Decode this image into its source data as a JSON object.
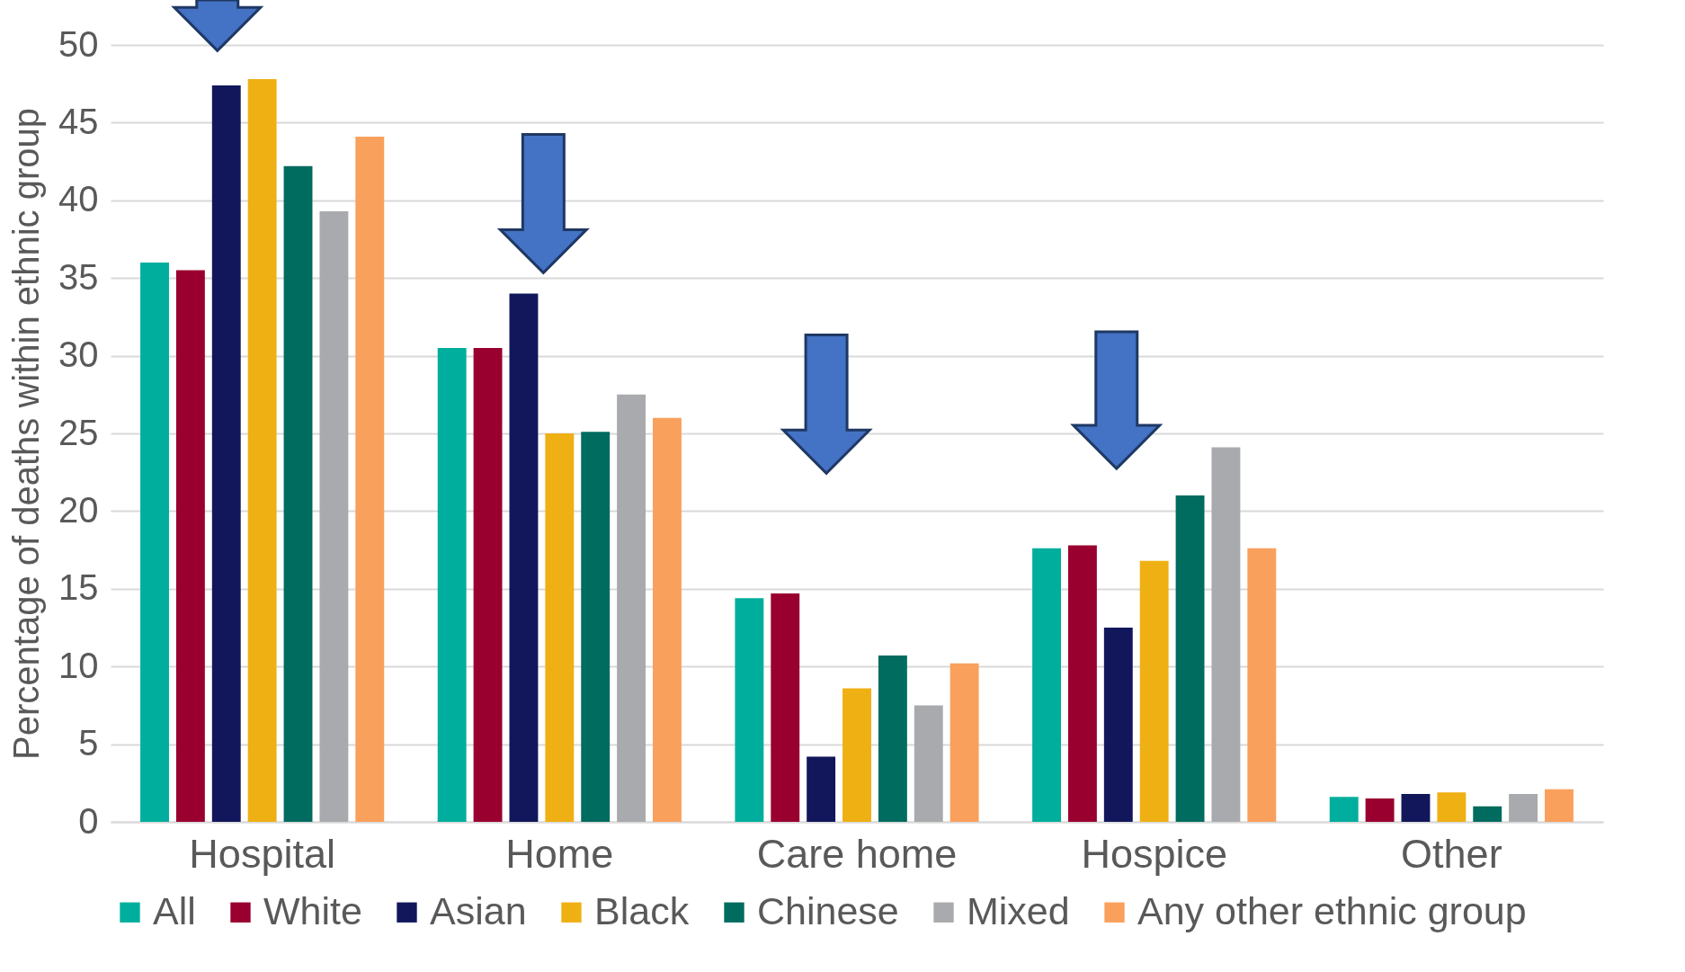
{
  "chart_data": {
    "type": "bar",
    "ylabel": "Percentage of deaths within ethnic group",
    "categories": [
      "Hospital",
      "Home",
      "Care home",
      "Hospice",
      "Other"
    ],
    "series": [
      {
        "name": "All",
        "color": "#00ae9d",
        "values": [
          36.0,
          30.5,
          14.4,
          17.6,
          1.6
        ]
      },
      {
        "name": "White",
        "color": "#990030",
        "values": [
          35.5,
          30.5,
          14.7,
          17.8,
          1.5
        ]
      },
      {
        "name": "Asian",
        "color": "#12175c",
        "values": [
          47.4,
          34.0,
          4.2,
          12.5,
          1.8
        ]
      },
      {
        "name": "Black",
        "color": "#efb014",
        "values": [
          47.8,
          25.0,
          8.6,
          16.8,
          1.9
        ]
      },
      {
        "name": "Chinese",
        "color": "#006b5f",
        "values": [
          42.2,
          25.1,
          10.7,
          21.0,
          1.0
        ]
      },
      {
        "name": "Mixed",
        "color": "#a9aaad",
        "values": [
          39.3,
          27.5,
          7.5,
          24.1,
          1.8
        ]
      },
      {
        "name": "Any other ethnic group",
        "color": "#f9a05c",
        "values": [
          44.1,
          26.0,
          10.2,
          17.6,
          2.1
        ]
      }
    ],
    "ylim": [
      0,
      50
    ],
    "yticks": [
      0,
      5,
      10,
      15,
      20,
      25,
      30,
      35,
      40,
      45,
      50
    ],
    "grid": "y",
    "legend": "bottom"
  }
}
